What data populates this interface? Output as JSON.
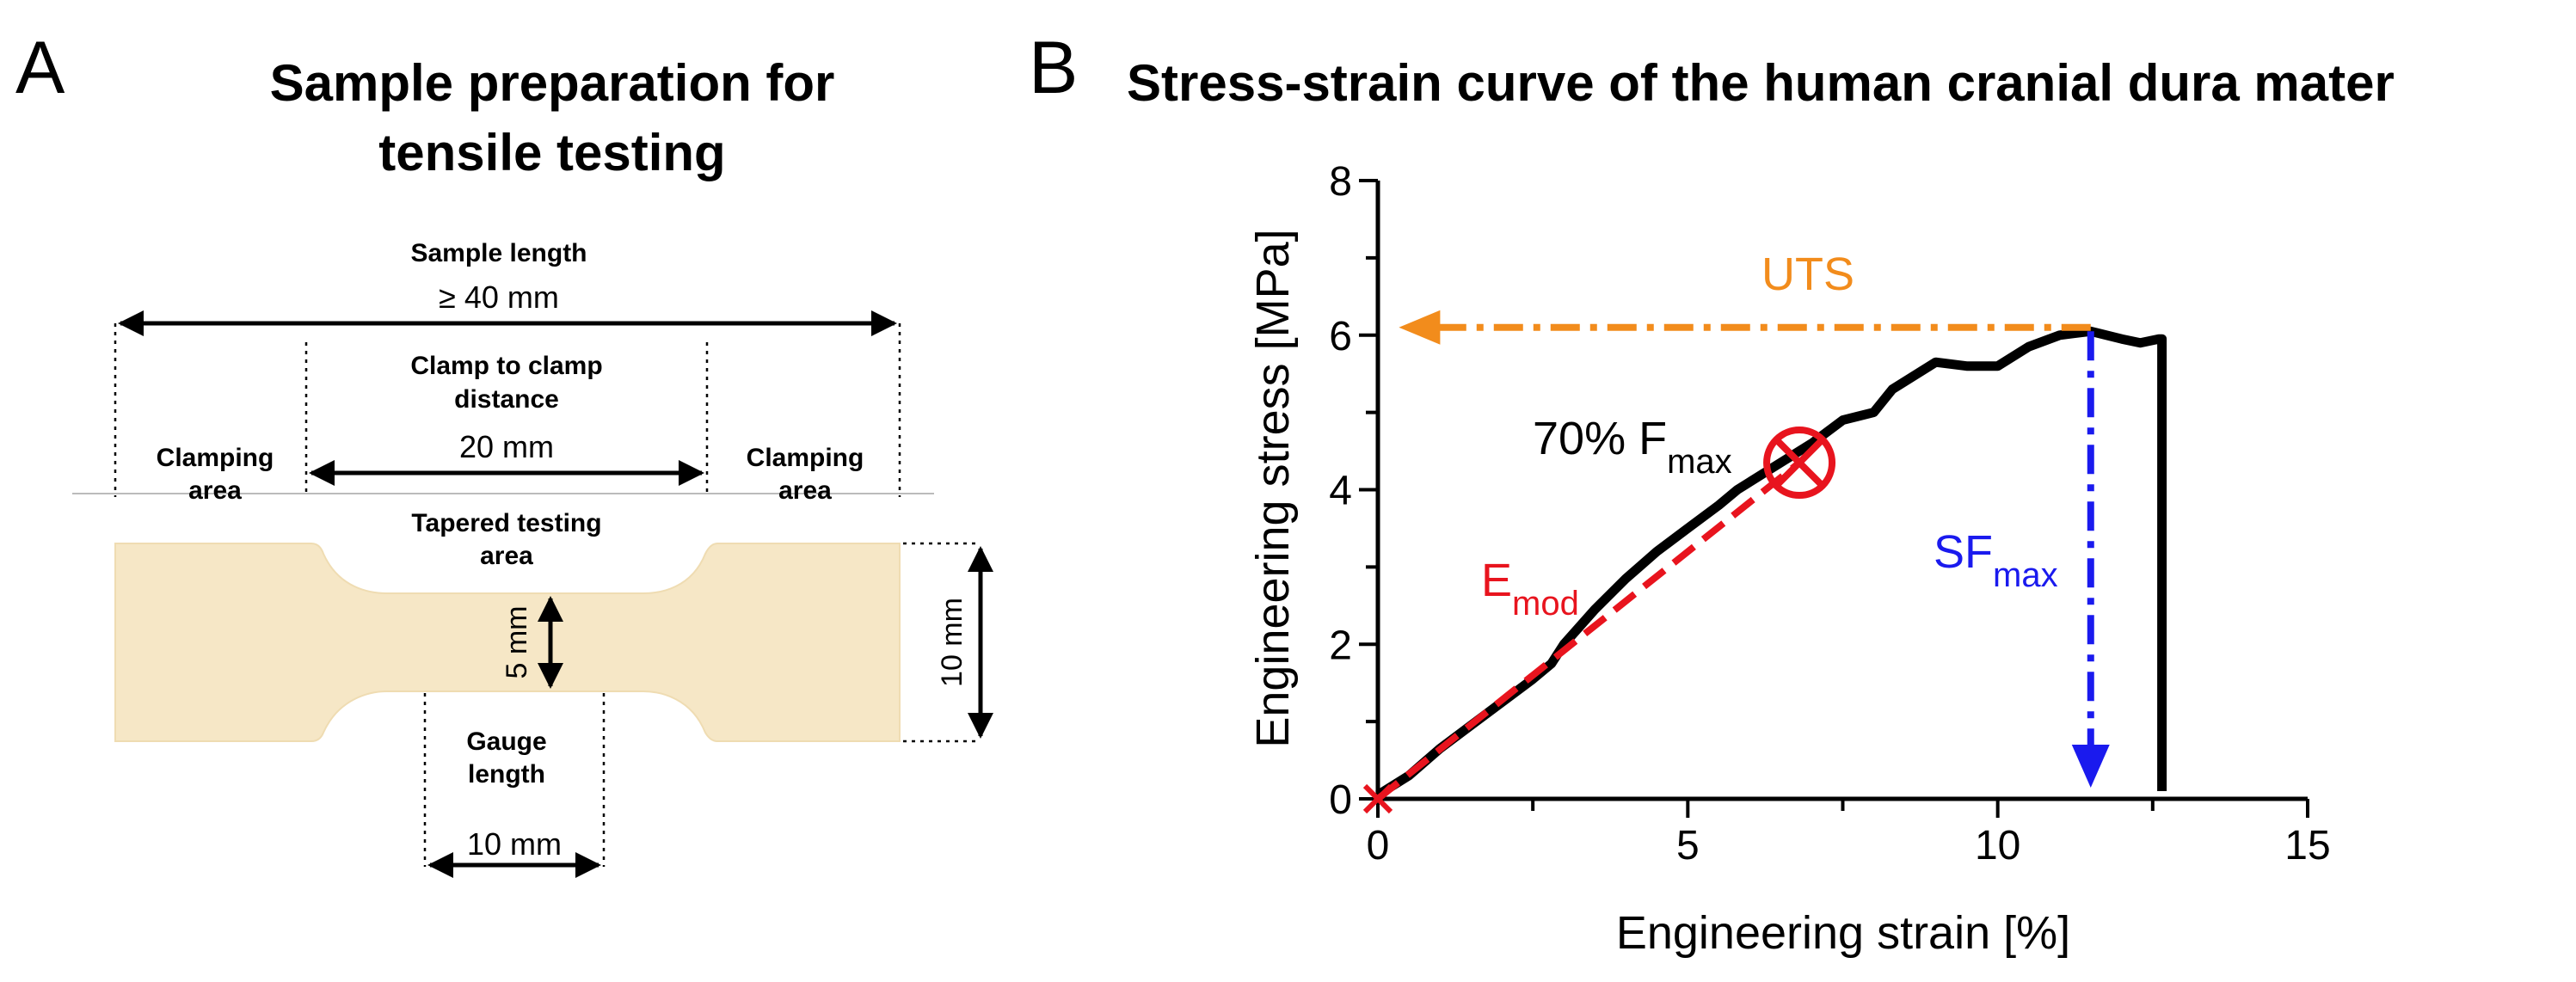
{
  "panel_a": {
    "letter": "A",
    "title_line1": "Sample preparation for",
    "title_line2": "tensile testing",
    "sample_length_label": "Sample length",
    "sample_length_value": "≥ 40 mm",
    "clamp_to_clamp_line1": "Clamp to clamp",
    "clamp_to_clamp_line2": "distance",
    "clamp_to_clamp_value": "20 mm",
    "clamping_area_left_line1": "Clamping",
    "clamping_area_left_line2": "area",
    "clamping_area_right_line1": "Clamping",
    "clamping_area_right_line2": "area",
    "tapered_line1": "Tapered testing",
    "tapered_line2": "area",
    "width_value": "5 mm",
    "height_value": "10 mm",
    "gauge_line1": "Gauge",
    "gauge_line2": "length",
    "gauge_value": "10 mm",
    "colors": {
      "sample_fill": "#f6e7c6"
    }
  },
  "panel_b": {
    "letter": "B",
    "title": "Stress-strain curve of the human cranial dura mater",
    "uts_label": "UTS",
    "fmax_prefix": "70% F",
    "fmax_sub": "max",
    "emod_main": "E",
    "emod_sub": "mod",
    "sf_main": "SF",
    "sf_sub": "max",
    "colors": {
      "uts": "#f28c1c",
      "emod": "#e8141e",
      "sf": "#1a1aee",
      "curve": "#000000"
    }
  },
  "chart_data": {
    "type": "line",
    "title": "Stress-strain curve of the human cranial dura mater",
    "xlabel": "Engineering strain [%]",
    "ylabel": "Engineering stress [MPa]",
    "xlim": [
      0,
      15
    ],
    "ylim": [
      0,
      8
    ],
    "xticks": [
      0,
      5,
      10,
      15
    ],
    "yticks": [
      0,
      2,
      4,
      6,
      8
    ],
    "series": [
      {
        "name": "Stress-strain curve",
        "x": [
          0,
          0.5,
          1.0,
          1.5,
          2.0,
          2.5,
          2.8,
          3.0,
          3.5,
          4.0,
          4.5,
          5.0,
          5.5,
          5.8,
          6.0,
          6.5,
          7.0,
          7.5,
          8.0,
          8.3,
          8.6,
          9.0,
          9.5,
          10.0,
          10.5,
          11.0,
          11.5,
          12.0,
          12.3,
          12.6,
          12.65,
          12.65
        ],
        "y": [
          0.05,
          0.3,
          0.65,
          0.95,
          1.25,
          1.55,
          1.75,
          2.0,
          2.45,
          2.85,
          3.2,
          3.5,
          3.8,
          4.0,
          4.1,
          4.35,
          4.6,
          4.9,
          5.0,
          5.3,
          5.45,
          5.65,
          5.6,
          5.6,
          5.85,
          6.0,
          6.05,
          5.95,
          5.9,
          5.95,
          5.95,
          0.1
        ]
      },
      {
        "name": "Emod fit",
        "x": [
          0,
          6.8
        ],
        "y": [
          0,
          4.35
        ]
      }
    ],
    "annotations": [
      {
        "label": "UTS",
        "x": 11.5,
        "y": 6.1,
        "arrow_to_x": 0.2
      },
      {
        "label": "70% Fmax",
        "x": 6.8,
        "y": 4.35
      },
      {
        "label": "SFmax",
        "x": 11.5,
        "y_from": 6.05,
        "y_to": 0.1
      },
      {
        "label": "Emod",
        "x": 0,
        "y": 0
      }
    ]
  }
}
